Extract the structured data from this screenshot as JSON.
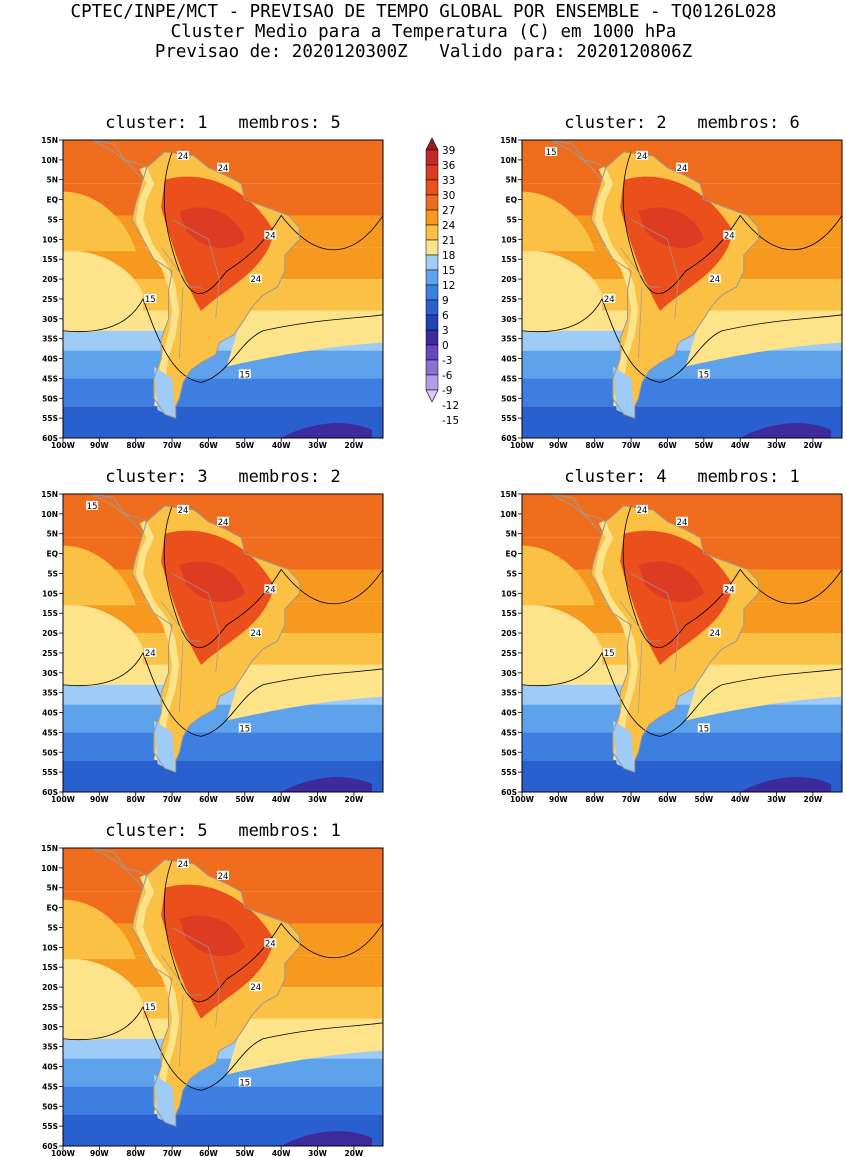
{
  "header": {
    "line1": "CPTEC/INPE/MCT - PREVISAO DE TEMPO GLOBAL POR ENSEMBLE - TQ0126L028",
    "line2": "Cluster Medio para a Temperatura (C) em 1000 hPa",
    "line3": "Previsao de: 2020120300Z   Valido para: 2020120806Z"
  },
  "lat_labels": [
    "15N",
    "10N",
    "5N",
    "EQ",
    "5S",
    "10S",
    "15S",
    "20S",
    "25S",
    "30S",
    "35S",
    "40S",
    "45S",
    "50S",
    "55S",
    "60S"
  ],
  "lon_labels": [
    "100W",
    "90W",
    "80W",
    "70W",
    "60W",
    "50W",
    "40W",
    "30W",
    "20W"
  ],
  "colorbar": {
    "labels": [
      "39",
      "36",
      "33",
      "30",
      "27",
      "24",
      "21",
      "18",
      "15",
      "12",
      "9",
      "6",
      "3",
      "0",
      "-3",
      "-6",
      "-9",
      "-12",
      "-15"
    ],
    "colors": [
      "#a01818",
      "#c02a2a",
      "#dd3b22",
      "#ea4f1c",
      "#f06d1d",
      "#f7981f",
      "#fbc145",
      "#fde38a",
      "#9fcbf7",
      "#5fa2ec",
      "#3d7fe0",
      "#2a5fce",
      "#1f44b6",
      "#3d2a9c",
      "#6746c0",
      "#8a6fd4",
      "#b59de6",
      "#d6c8f2"
    ]
  },
  "panels": [
    {
      "title": "cluster: 1   membros: 5",
      "labels": [
        "24",
        "24",
        "24",
        "24",
        "15",
        "15"
      ]
    },
    {
      "title": "cluster: 2   membros: 6",
      "labels": [
        "24",
        "24",
        "24",
        "24",
        "24",
        "15",
        "15"
      ]
    },
    {
      "title": "cluster: 3   membros: 2",
      "labels": [
        "24",
        "24",
        "24",
        "24",
        "24",
        "15",
        "15"
      ]
    },
    {
      "title": "cluster: 4   membros: 1",
      "labels": [
        "24",
        "24",
        "24",
        "24",
        "15",
        "15"
      ]
    },
    {
      "title": "cluster: 5   membros: 1",
      "labels": [
        "24",
        "24",
        "24",
        "24",
        "15",
        "15"
      ]
    }
  ]
}
